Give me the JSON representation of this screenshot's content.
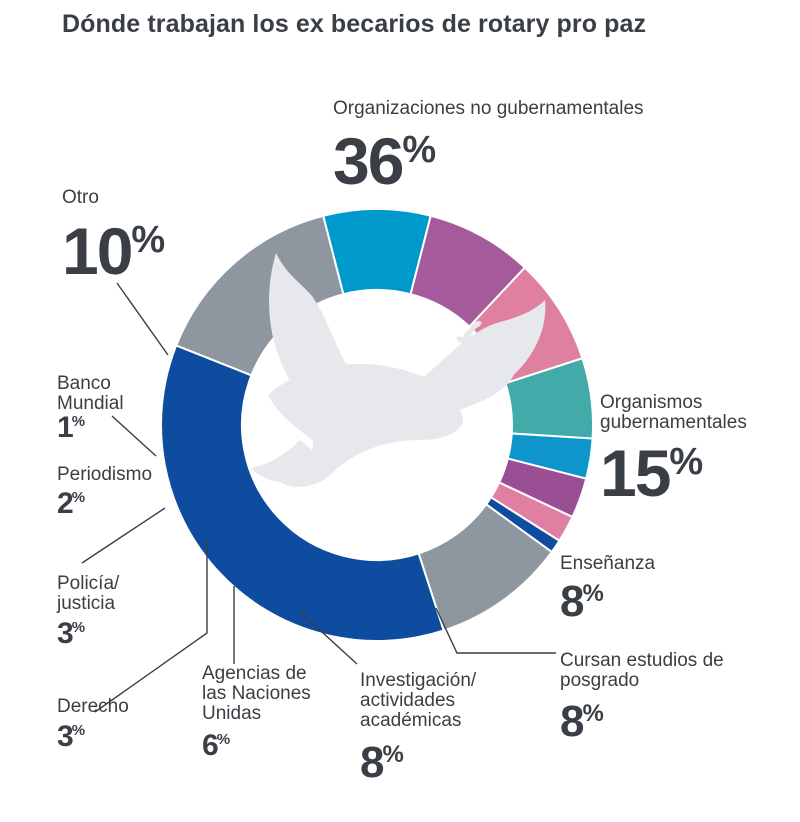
{
  "title": "Dónde trabajan los ex becarios de rotary pro paz",
  "chart_data": {
    "type": "pie",
    "donut": true,
    "categories": [
      "Organizaciones no gubernamentales",
      "Organismos gubernamentales",
      "Enseñanza",
      "Cursan estudios de posgrado",
      "Investigación/ actividades académicas",
      "Agencias de las Naciones Unidas",
      "Derecho",
      "Policía/ justicia",
      "Periodismo",
      "Banco Mundial",
      "Otro"
    ],
    "values": [
      36,
      15,
      8,
      8,
      8,
      6,
      3,
      3,
      2,
      1,
      10
    ],
    "colors": [
      "#0d4c9e",
      "#8e97a0",
      "#0099cc",
      "#a55a9b",
      "#e080a0",
      "#42aaa8",
      "#0e96cc",
      "#9a4f95",
      "#e07fa2",
      "#0e4c9f",
      "#8e97a0"
    ]
  },
  "labels": [
    {
      "text_lines": [
        "Organizaciones no gubernamentales"
      ],
      "pct": "36"
    },
    {
      "text_lines": [
        "Organismos",
        "gubernamentales"
      ],
      "pct": "15"
    },
    {
      "text_lines": [
        "Enseñanza"
      ],
      "pct": "8"
    },
    {
      "text_lines": [
        "Cursan estudios de",
        "posgrado"
      ],
      "pct": "8"
    },
    {
      "text_lines": [
        "Investigación/",
        "actividades",
        "académicas"
      ],
      "pct": "8"
    },
    {
      "text_lines": [
        "Agencias de",
        "las Naciones",
        "Unidas"
      ],
      "pct": "6"
    },
    {
      "text_lines": [
        "Derecho"
      ],
      "pct": "3"
    },
    {
      "text_lines": [
        "Policía/",
        "justicia"
      ],
      "pct": "3"
    },
    {
      "text_lines": [
        "Periodismo"
      ],
      "pct": "2"
    },
    {
      "text_lines": [
        "Banco",
        "Mundial"
      ],
      "pct": "1"
    },
    {
      "text_lines": [
        "Otro"
      ],
      "pct": "10"
    }
  ],
  "percent_sign": "%",
  "center_icon": "dove-icon"
}
